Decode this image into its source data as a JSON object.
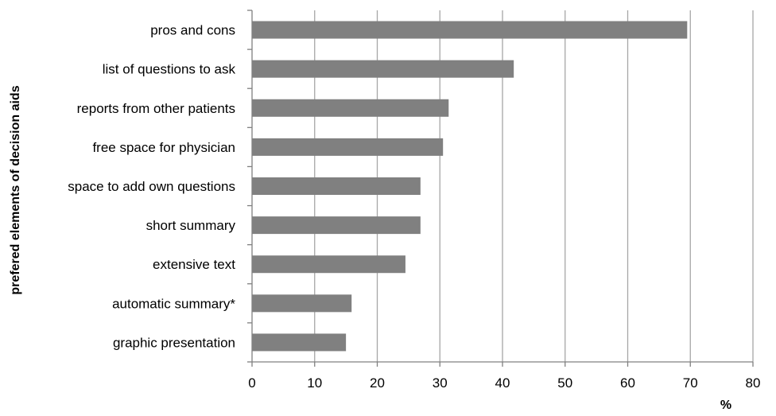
{
  "chart_data": {
    "type": "bar",
    "orientation": "horizontal",
    "categories": [
      "pros and cons",
      "list of questions to ask",
      "reports from other patients",
      "free space for physician",
      "space to add own questions",
      "short summary",
      "extensive text",
      "automatic summary*",
      "graphic presentation"
    ],
    "values": [
      69.5,
      41.8,
      31.4,
      30.5,
      26.9,
      26.9,
      24.5,
      15.9,
      15.0
    ],
    "xlabel": "%",
    "ylabel": "prefered elements of decision aids",
    "xlim": [
      0,
      80
    ],
    "xticks": [
      0,
      10,
      20,
      30,
      40,
      50,
      60,
      70,
      80
    ],
    "grid": "vertical",
    "legend": "none",
    "bar_color": "#808080",
    "grid_color": "#a6a6a6",
    "axis_color": "#808080"
  }
}
